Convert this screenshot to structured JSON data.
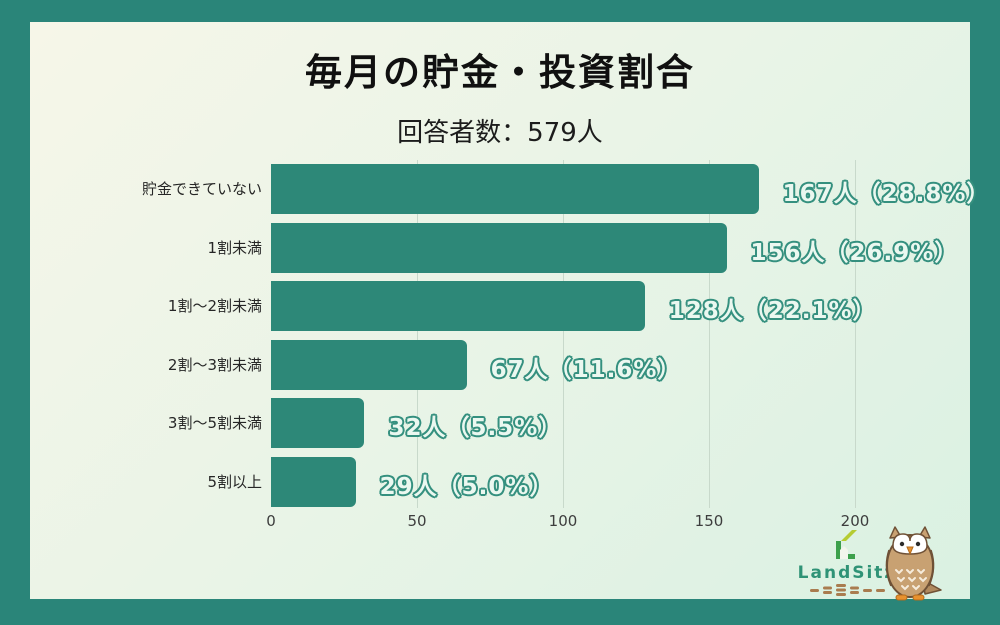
{
  "frame": {
    "border_color": "#2a8579",
    "panel_bg_from": "#f6f6e8",
    "panel_bg_mid": "#e9f4e7",
    "panel_bg_to": "#daf1e2"
  },
  "header": {
    "title": "毎月の貯金・投資割合",
    "subtitle": "回答者数：579人"
  },
  "chart_data": {
    "type": "bar",
    "orientation": "horizontal",
    "title": "毎月の貯金・投資割合",
    "subtitle": "回答者数：579人",
    "categories": [
      "貯金できていない",
      "1割未満",
      "1割〜2割未満",
      "2割〜3割未満",
      "3割〜5割未満",
      "5割以上"
    ],
    "values": [
      167,
      156,
      128,
      67,
      32,
      29
    ],
    "percentages": [
      28.8,
      26.9,
      22.1,
      11.6,
      5.5,
      5.0
    ],
    "value_labels": [
      "167人（28.8%）",
      "156人（26.9%）",
      "128人（22.1%）",
      "67人（11.6%）",
      "32人（5.5%）",
      "29人（5.0%）"
    ],
    "x_ticks": [
      0,
      50,
      100,
      150,
      200
    ],
    "xlim": [
      0,
      200
    ],
    "grid": true,
    "legend": "none",
    "bar_color": "#2d8878",
    "gridline_color": "#c8d9cb",
    "value_label_fill": "#ebf8f0",
    "value_label_stroke": "#35907f"
  },
  "branding": {
    "logo_text": "LandSitz",
    "logo_icon": "house-logo",
    "mascot": "owl-mascot",
    "logo_text_color": "#2f9376",
    "logo_green": "#3da04c",
    "logo_lime": "#b5cc32",
    "dash_color": "#a97c4f"
  }
}
